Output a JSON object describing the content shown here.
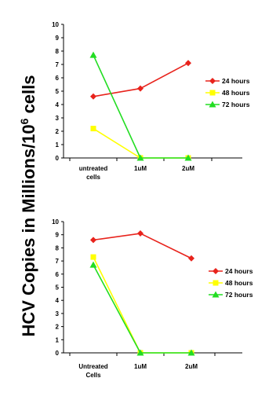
{
  "ylabel": {
    "main": "HCV Copies in  Millions/10",
    "superscript": "6",
    "suffix": " cells"
  },
  "colors": {
    "24 hours": "#e8231c",
    "48 hours": "#ffff00",
    "72 hours": "#22dd22"
  },
  "chart_data": [
    {
      "type": "line",
      "categories": [
        [
          "untreated",
          "cells"
        ],
        [
          "1uM"
        ],
        [
          "2uM"
        ]
      ],
      "ylim": [
        0,
        10
      ],
      "yticks": [
        0,
        1,
        2,
        3,
        4,
        5,
        6,
        7,
        8,
        9,
        10
      ],
      "grid": false,
      "legend_position": "right",
      "series": [
        {
          "name": "24 hours",
          "color": "#e8231c",
          "marker": "diamond",
          "values": [
            4.6,
            5.2,
            7.1
          ]
        },
        {
          "name": "48 hours",
          "color": "#ffff00",
          "marker": "square",
          "values": [
            2.2,
            0,
            0
          ]
        },
        {
          "name": "72 hours",
          "color": "#22dd22",
          "marker": "triangle",
          "values": [
            7.7,
            0,
            0
          ]
        }
      ]
    },
    {
      "type": "line",
      "categories": [
        [
          "Untreated",
          "Cells"
        ],
        [
          "1uM"
        ],
        [
          "2uM"
        ]
      ],
      "ylim": [
        0,
        10
      ],
      "yticks": [
        0,
        1,
        2,
        3,
        4,
        5,
        6,
        7,
        8,
        9,
        10
      ],
      "grid": false,
      "legend_position": "right",
      "series": [
        {
          "name": "24 hours",
          "color": "#e8231c",
          "marker": "diamond",
          "values": [
            8.6,
            9.1,
            7.2
          ]
        },
        {
          "name": "48 hours",
          "color": "#ffff00",
          "marker": "square",
          "values": [
            7.3,
            0,
            0
          ]
        },
        {
          "name": "72 hours",
          "color": "#22dd22",
          "marker": "triangle",
          "values": [
            6.7,
            0,
            0
          ]
        }
      ]
    }
  ]
}
